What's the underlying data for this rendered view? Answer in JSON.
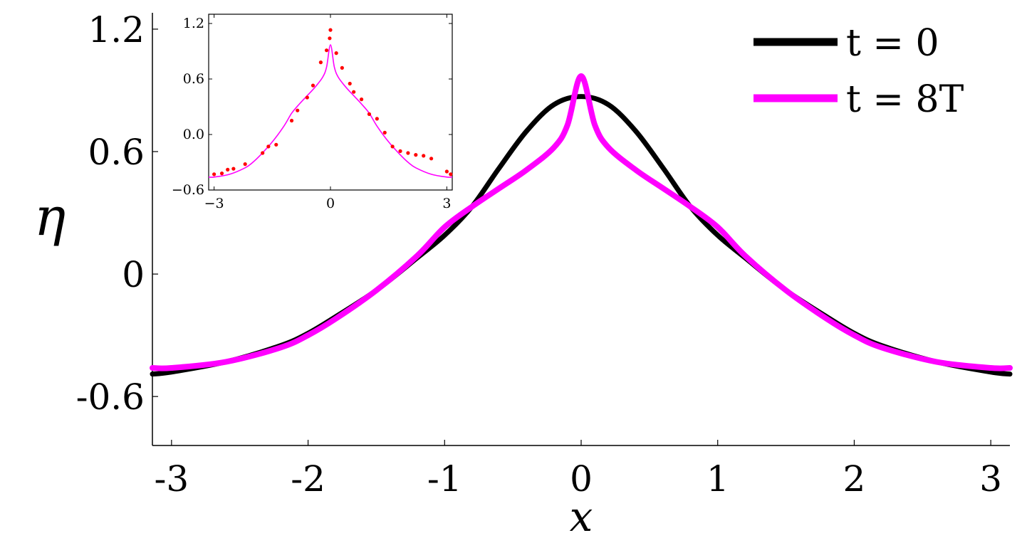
{
  "chart_data": [
    {
      "type": "line",
      "name": "main",
      "xlabel": "x",
      "ylabel": "η",
      "xlim": [
        -3.14,
        3.14
      ],
      "ylim": [
        -0.84,
        1.28
      ],
      "xticks": [
        -3,
        -2,
        -1,
        0,
        1,
        2,
        3
      ],
      "xtick_labels": [
        "-3",
        "-2",
        "-1",
        "0",
        "1",
        "2",
        "3"
      ],
      "yticks": [
        1.2,
        0.6,
        0,
        -0.6
      ],
      "ytick_labels": [
        "1.2",
        "0.6",
        "0",
        "-0.6"
      ],
      "legend_position": "top-right",
      "series": [
        {
          "name": "t = 0",
          "color": "#000000",
          "x": [
            -3.14,
            -3.0,
            -2.6,
            -2.2,
            -2.0,
            -1.8,
            -1.5,
            -1.2,
            -1.0,
            -0.8,
            -0.6,
            -0.4,
            -0.2,
            0.0,
            0.2,
            0.4,
            0.6,
            0.8,
            1.0,
            1.2,
            1.5,
            1.8,
            2.0,
            2.2,
            2.6,
            3.0,
            3.14
          ],
          "y": [
            -0.49,
            -0.48,
            -0.43,
            -0.35,
            -0.29,
            -0.21,
            -0.08,
            0.08,
            0.19,
            0.33,
            0.52,
            0.7,
            0.83,
            0.87,
            0.83,
            0.7,
            0.52,
            0.33,
            0.19,
            0.08,
            -0.08,
            -0.21,
            -0.29,
            -0.35,
            -0.43,
            -0.48,
            -0.49
          ]
        },
        {
          "name": "t = 8T",
          "color": "#ff00ff",
          "x": [
            -3.14,
            -3.0,
            -2.6,
            -2.2,
            -2.0,
            -1.8,
            -1.5,
            -1.2,
            -1.0,
            -0.8,
            -0.6,
            -0.4,
            -0.2,
            -0.1,
            0.0,
            0.1,
            0.2,
            0.4,
            0.6,
            0.8,
            1.0,
            1.2,
            1.5,
            1.8,
            2.0,
            2.2,
            2.6,
            3.0,
            3.14
          ],
          "y": [
            -0.46,
            -0.46,
            -0.43,
            -0.36,
            -0.3,
            -0.22,
            -0.08,
            0.09,
            0.23,
            0.33,
            0.42,
            0.51,
            0.62,
            0.73,
            0.97,
            0.73,
            0.62,
            0.51,
            0.42,
            0.33,
            0.23,
            0.09,
            -0.08,
            -0.22,
            -0.3,
            -0.36,
            -0.43,
            -0.46,
            -0.46
          ]
        }
      ]
    },
    {
      "type": "line",
      "name": "inset",
      "xlim": [
        -3.14,
        3.14
      ],
      "ylim": [
        -0.6,
        1.3
      ],
      "xticks": [
        -3,
        0,
        3
      ],
      "xtick_labels": [
        "−3",
        "0",
        "3"
      ],
      "yticks": [
        1.2,
        0.6,
        0.0,
        -0.6
      ],
      "ytick_labels": [
        "1.2",
        "0.6",
        "0.0",
        "−0.6"
      ],
      "series": [
        {
          "type": "line",
          "color": "#ff00ff",
          "x": [
            -3.14,
            -3.0,
            -2.6,
            -2.2,
            -2.0,
            -1.8,
            -1.5,
            -1.2,
            -1.0,
            -0.8,
            -0.6,
            -0.4,
            -0.2,
            -0.1,
            0.0,
            0.1,
            0.2,
            0.4,
            0.6,
            0.8,
            1.0,
            1.2,
            1.5,
            1.8,
            2.0,
            2.2,
            2.6,
            3.0,
            3.14
          ],
          "y": [
            -0.46,
            -0.46,
            -0.43,
            -0.36,
            -0.3,
            -0.22,
            -0.08,
            0.09,
            0.23,
            0.33,
            0.42,
            0.51,
            0.62,
            0.73,
            0.97,
            0.73,
            0.62,
            0.51,
            0.42,
            0.33,
            0.23,
            0.09,
            -0.08,
            -0.22,
            -0.3,
            -0.36,
            -0.43,
            -0.46,
            -0.46
          ]
        },
        {
          "type": "scatter",
          "color": "#ff0000",
          "x": [
            -3.0,
            -2.8,
            -2.65,
            -2.5,
            -2.2,
            -1.75,
            -1.6,
            -1.4,
            -1.0,
            -0.85,
            -0.6,
            -0.45,
            -0.25,
            -0.1,
            -0.02,
            0.0,
            0.15,
            0.3,
            0.5,
            0.6,
            0.8,
            1.0,
            1.2,
            1.4,
            1.6,
            1.8,
            2.0,
            2.2,
            2.4,
            2.6,
            3.0,
            3.1
          ],
          "y": [
            -0.43,
            -0.42,
            -0.38,
            -0.37,
            -0.32,
            -0.2,
            -0.13,
            -0.11,
            0.15,
            0.26,
            0.4,
            0.53,
            0.78,
            0.91,
            1.04,
            1.13,
            0.88,
            0.72,
            0.55,
            0.46,
            0.38,
            0.22,
            0.17,
            0.02,
            -0.13,
            -0.18,
            -0.2,
            -0.22,
            -0.23,
            -0.26,
            -0.4,
            -0.43
          ]
        }
      ]
    }
  ]
}
